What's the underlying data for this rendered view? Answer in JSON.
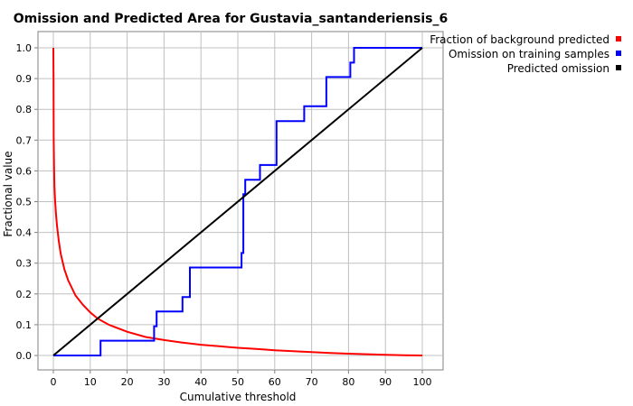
{
  "chart_data": {
    "type": "line",
    "title": "Omission and Predicted Area for Gustavia_santanderiensis_6",
    "xlabel": "Cumulative threshold",
    "ylabel": "Fractional value",
    "xlim": [
      0,
      100
    ],
    "ylim": [
      0,
      1
    ],
    "x_ticks": [
      "0",
      "10",
      "20",
      "30",
      "40",
      "50",
      "60",
      "70",
      "80",
      "90",
      "100"
    ],
    "y_ticks": [
      "0.0",
      "0.1",
      "0.2",
      "0.3",
      "0.4",
      "0.5",
      "0.6",
      "0.7",
      "0.8",
      "0.9",
      "1.0"
    ],
    "grid": true,
    "legend_position": "top-right, outside plot",
    "series": [
      {
        "name": "Fraction of background predicted",
        "color": "#ff0000",
        "x": [
          0,
          0.05,
          0.1,
          0.2,
          0.3,
          0.5,
          0.7,
          1,
          1.5,
          2,
          3,
          4,
          5,
          6,
          8,
          10,
          12,
          15,
          20,
          25,
          30,
          35,
          40,
          45,
          50,
          55,
          60,
          65,
          70,
          75,
          80,
          85,
          90,
          95,
          100
        ],
        "y": [
          1.0,
          0.9,
          0.7,
          0.61,
          0.55,
          0.5,
          0.46,
          0.42,
          0.37,
          0.33,
          0.28,
          0.245,
          0.22,
          0.195,
          0.165,
          0.14,
          0.12,
          0.1,
          0.077,
          0.06,
          0.05,
          0.042,
          0.035,
          0.03,
          0.025,
          0.021,
          0.017,
          0.014,
          0.011,
          0.008,
          0.006,
          0.004,
          0.002,
          0.001,
          0.0
        ]
      },
      {
        "name": "Omission on training samples",
        "color": "#0000ff",
        "step": true,
        "x": [
          0,
          12.8,
          27.3,
          28,
          35,
          37,
          51,
          51.5,
          52,
          56,
          60.5,
          68,
          74,
          80.5,
          81.5,
          100
        ],
        "y": [
          0,
          0.048,
          0.095,
          0.143,
          0.19,
          0.286,
          0.333,
          0.524,
          0.571,
          0.619,
          0.762,
          0.81,
          0.905,
          0.952,
          1.0,
          1.0
        ]
      },
      {
        "name": "Predicted omission",
        "color": "#000000",
        "x": [
          0,
          100
        ],
        "y": [
          0,
          1
        ]
      }
    ]
  }
}
